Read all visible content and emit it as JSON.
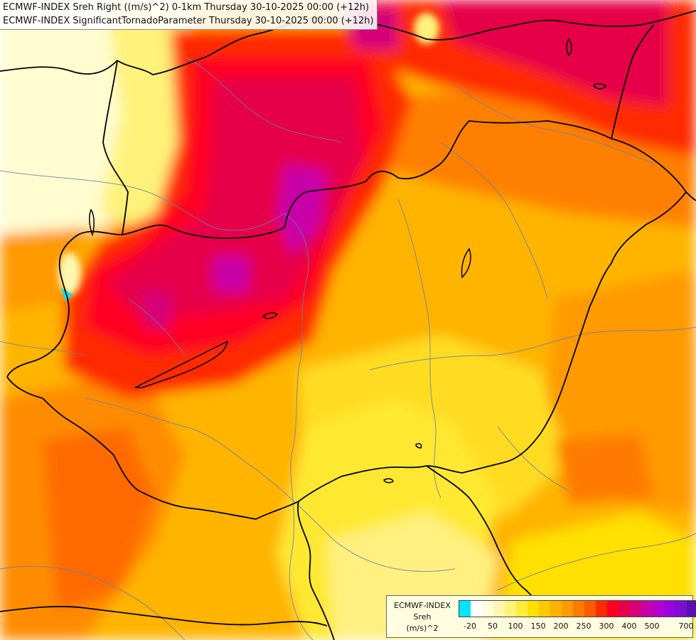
{
  "titles": {
    "line1": "ECMWF-INDEX Sreh Right ((m/s)^2) 0-1km Thursday 30-10-2025 00:00 (+12h)",
    "line2": "ECMWF-INDEX SignificantTornadoParameter Thursday 30-10-2025 00:00 (+12h)"
  },
  "legend": {
    "title_line1": "ECMWF-INDEX",
    "title_line2": "Sreh",
    "title_line3": "(m/s)^2",
    "colors": [
      "#00e5ff",
      "#ffffff",
      "#fffde0",
      "#fff7b0",
      "#fff27a",
      "#ffec3d",
      "#ffe000",
      "#ffc800",
      "#ffb000",
      "#ff9a00",
      "#ff7a00",
      "#ff5a00",
      "#ff2a00",
      "#ff0020",
      "#e6004a",
      "#d6007a",
      "#c800a8",
      "#b400d0",
      "#9a00e0",
      "#7a10d0",
      "#5a10b0",
      "#2a0a8a"
    ],
    "ticks": [
      "-20",
      "50",
      "100",
      "150",
      "200",
      "250",
      "300",
      "400",
      "500",
      "700"
    ]
  }
}
